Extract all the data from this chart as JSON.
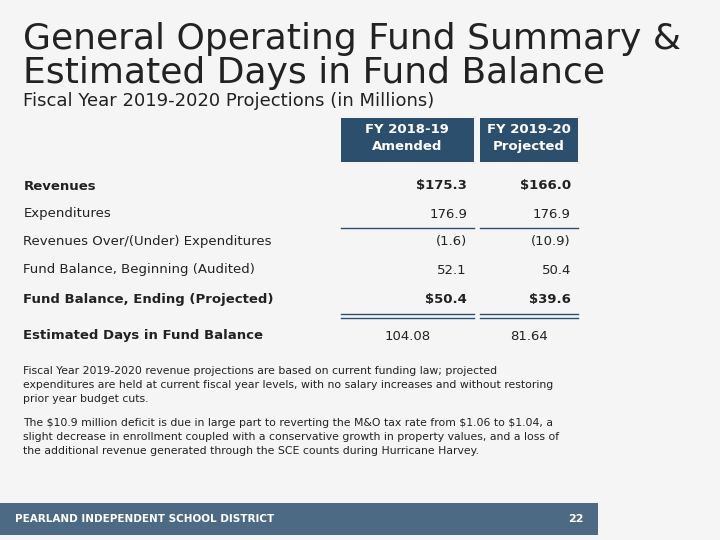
{
  "title_line1": "General Operating Fund Summary &",
  "title_line2": "Estimated Days in Fund Balance",
  "subtitle": "Fiscal Year 2019-2020 Projections (in Millions)",
  "header_bg": "#2d4f6e",
  "header_text": "#ffffff",
  "row_labels": [
    "Revenues",
    "Expenditures",
    "Revenues Over/(Under) Expenditures",
    "Fund Balance, Beginning (Audited)",
    "Fund Balance, Ending (Projected)"
  ],
  "col1_values": [
    "$175.3",
    "176.9",
    "(1.6)",
    "52.1",
    "$50.4"
  ],
  "col2_values": [
    "$166.0",
    "176.9",
    "(10.9)",
    "50.4",
    "$39.6"
  ],
  "est_label": "Estimated Days in Fund Balance",
  "est_col1": "104.08",
  "est_col2": "81.64",
  "footer_text1": "Fiscal Year 2019-2020 revenue projections are based on current funding law; projected\nexpenditures are held at current fiscal year levels, with no salary increases and without restoring\nprior year budget cuts.",
  "footer_text2": "The $10.9 million deficit is due in large part to reverting the M&O tax rate from $1.06 to $1.04, a\nslight decrease in enrollment coupled with a conservative growth in property values, and a loss of\nthe additional revenue generated through the SCE counts during Hurricane Harvey.",
  "footer_bar_bg": "#4d6a84",
  "footer_bar_text": "PEARLAND INDEPENDENT SCHOOL DISTRICT",
  "footer_bar_number": "22",
  "bg_color": "#f5f5f5",
  "text_color": "#222222",
  "line_color": "#2d4f6e"
}
